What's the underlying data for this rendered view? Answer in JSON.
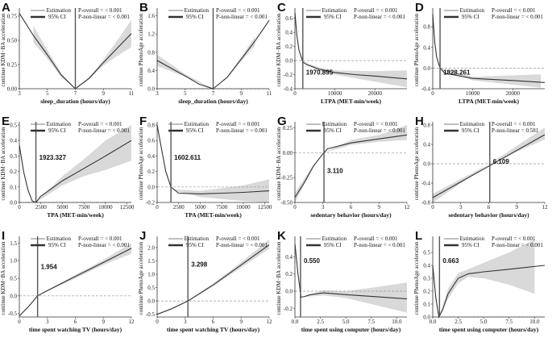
{
  "legend": {
    "estimation": "Estimation",
    "ci": "95% CI"
  },
  "chart_data": [
    {
      "id": "A",
      "type": "line",
      "ylabel": "continue KDM−BA acceleration",
      "xlabel": "sleep_duration (hours/day)",
      "xlim": [
        3,
        11
      ],
      "ylim": [
        0,
        0.8
      ],
      "xticks": [
        3,
        5,
        7,
        9,
        11
      ],
      "xtick_labels": [
        "3",
        "5",
        "7",
        "9",
        "11"
      ],
      "yticks": [
        0,
        0.25,
        0.5,
        0.75
      ],
      "ytick_labels": [
        "0.00",
        "0.25",
        "0.50",
        "0.75"
      ],
      "p_overall": "P-overall = < 0.001",
      "p_nonlinear": "P-non-linear = < 0.001",
      "ref_x": 7,
      "ref_label": "",
      "zero_line": false,
      "estimate": [
        [
          3,
          0.78
        ],
        [
          4,
          0.55
        ],
        [
          5,
          0.35
        ],
        [
          6,
          0.14
        ],
        [
          7,
          0
        ],
        [
          8,
          0.11
        ],
        [
          9,
          0.27
        ],
        [
          10,
          0.42
        ],
        [
          11,
          0.57
        ]
      ],
      "ci": [
        [
          4,
          0.48,
          0.65
        ],
        [
          5,
          0.31,
          0.4
        ],
        [
          6,
          0.12,
          0.16
        ],
        [
          7,
          0,
          0
        ],
        [
          8,
          0.1,
          0.12
        ],
        [
          9,
          0.24,
          0.3
        ],
        [
          10,
          0.34,
          0.5
        ],
        [
          11,
          0.43,
          0.71
        ]
      ]
    },
    {
      "id": "B",
      "type": "line",
      "ylabel": "continue PhenoAge acceleration",
      "xlabel": "sleep_duration (hours/day)",
      "xlim": [
        3,
        11
      ],
      "ylim": [
        0,
        1.7
      ],
      "xticks": [
        3,
        5,
        7,
        9,
        11
      ],
      "xtick_labels": [
        "3",
        "5",
        "7",
        "9",
        "11"
      ],
      "yticks": [
        0,
        0.4,
        0.8,
        1.2,
        1.6
      ],
      "ytick_labels": [
        "0.0",
        "0.4",
        "0.8",
        "1.2",
        "1.6"
      ],
      "p_overall": "P-overall = < 0.001",
      "p_nonlinear": "P-non-linear = < 0.001",
      "ref_x": 7,
      "ref_label": "",
      "zero_line": true,
      "estimate": [
        [
          3,
          0.62
        ],
        [
          4,
          0.45
        ],
        [
          5,
          0.28
        ],
        [
          6,
          0.1
        ],
        [
          7,
          0
        ],
        [
          8,
          0.25
        ],
        [
          9,
          0.65
        ],
        [
          10,
          1.05
        ],
        [
          11,
          1.5
        ]
      ],
      "ci": [
        [
          3,
          0.5,
          0.75
        ],
        [
          5,
          0.26,
          0.32
        ],
        [
          7,
          0,
          0
        ],
        [
          8,
          0.23,
          0.27
        ],
        [
          9,
          0.6,
          0.7
        ],
        [
          10,
          0.95,
          1.15
        ]
      ]
    },
    {
      "id": "C",
      "type": "line",
      "ylabel": "continue KDM−BA acceleration",
      "xlabel": "LTPA (MET-min/week)",
      "xlim": [
        0,
        28000
      ],
      "ylim": [
        -0.4,
        0.7
      ],
      "xticks": [
        0,
        10000,
        20000
      ],
      "xtick_labels": [
        "0",
        "10000",
        "20000"
      ],
      "yticks": [
        -0.4,
        -0.2,
        0,
        0.2,
        0.4,
        0.6
      ],
      "ytick_labels": [
        "-0.4",
        "-0.2",
        "0.0",
        "0.2",
        "0.4",
        "0.6"
      ],
      "p_overall": "P-overall = < 0.001",
      "p_nonlinear": "P-non-linear = < 0.001",
      "ref_x": 1970.895,
      "ref_label": "1970.895",
      "zero_line": true,
      "estimate": [
        [
          0,
          0.68
        ],
        [
          500,
          0.35
        ],
        [
          1000,
          0.15
        ],
        [
          1970,
          -0.02
        ],
        [
          3000,
          -0.06
        ],
        [
          6000,
          -0.12
        ],
        [
          10000,
          -0.17
        ],
        [
          15000,
          -0.2
        ],
        [
          20000,
          -0.22
        ],
        [
          28000,
          -0.26
        ]
      ],
      "ci": [
        [
          2000,
          -0.03,
          -0.01
        ],
        [
          6000,
          -0.15,
          -0.1
        ],
        [
          10000,
          -0.2,
          -0.14
        ],
        [
          20000,
          -0.3,
          -0.15
        ],
        [
          28000,
          -0.38,
          -0.14
        ]
      ]
    },
    {
      "id": "D",
      "type": "line",
      "ylabel": "continue PhenoAge acceleration",
      "xlabel": "LTPA (MET-min/week)",
      "xlim": [
        0,
        28000
      ],
      "ylim": [
        -0.4,
        1.1
      ],
      "xticks": [
        0,
        10000,
        20000
      ],
      "xtick_labels": [
        "0",
        "10000",
        "20000"
      ],
      "yticks": [
        -0.4,
        0,
        0.4,
        0.8
      ],
      "ytick_labels": [
        "-0.4",
        "0.0",
        "0.4",
        "0.8"
      ],
      "p_overall": "P-overall = < 0.001",
      "p_nonlinear": "P-non-linear = < 0.001",
      "ref_x": 1828.261,
      "ref_label": "1828.261",
      "zero_line": true,
      "estimate": [
        [
          0,
          1.05
        ],
        [
          500,
          0.5
        ],
        [
          1000,
          0.2
        ],
        [
          1828,
          0
        ],
        [
          3000,
          -0.1
        ],
        [
          10000,
          -0.2
        ],
        [
          20000,
          -0.24
        ],
        [
          28000,
          -0.28
        ]
      ],
      "ci": [
        [
          2000,
          -0.02,
          0
        ],
        [
          10000,
          -0.24,
          -0.17
        ],
        [
          20000,
          -0.32,
          -0.14
        ],
        [
          27000,
          -0.38,
          -0.12
        ]
      ]
    },
    {
      "id": "E",
      "type": "line",
      "ylabel": "continue KDM−BA acceleration",
      "xlabel": "TPA (MET-min/week)",
      "xlim": [
        0,
        13000
      ],
      "ylim": [
        0,
        0.5
      ],
      "xticks": [
        0,
        2500,
        5000,
        7500,
        10000,
        12500
      ],
      "xtick_labels": [
        "0",
        "2500",
        "5000",
        "7500",
        "10000",
        "12500"
      ],
      "yticks": [
        0,
        0.1,
        0.2,
        0.3,
        0.4,
        0.5
      ],
      "ytick_labels": [
        "0.0",
        "0.1",
        "0.2",
        "0.3",
        "0.4",
        "0.5"
      ],
      "p_overall": "P-overall = < 0.001",
      "p_nonlinear": "P-non-linear = < 0.001",
      "ref_x": 1923.327,
      "ref_label": "1923.327",
      "zero_line": true,
      "estimate": [
        [
          0,
          0.37
        ],
        [
          500,
          0.2
        ],
        [
          1000,
          0.08
        ],
        [
          1500,
          0.01
        ],
        [
          1923,
          0
        ],
        [
          2500,
          0.04
        ],
        [
          5000,
          0.14
        ],
        [
          7500,
          0.22
        ],
        [
          10000,
          0.3
        ],
        [
          13000,
          0.4
        ]
      ],
      "ci": [
        [
          1923,
          0,
          0
        ],
        [
          5000,
          0.11,
          0.17
        ],
        [
          7500,
          0.17,
          0.28
        ],
        [
          10000,
          0.21,
          0.4
        ],
        [
          13000,
          0.27,
          0.5
        ]
      ]
    },
    {
      "id": "F",
      "type": "line",
      "ylabel": "continue PhenoAge acceleration",
      "xlabel": "TPA (MET-min/week)",
      "xlim": [
        0,
        13000
      ],
      "ylim": [
        -0.2,
        0.8
      ],
      "xticks": [
        0,
        2500,
        5000,
        7500,
        10000,
        12500
      ],
      "xtick_labels": [
        "0",
        "2500",
        "5000",
        "7500",
        "10000",
        "12500"
      ],
      "yticks": [
        -0.2,
        0,
        0.2,
        0.4,
        0.6,
        0.8
      ],
      "ytick_labels": [
        "-0.2",
        "0.0",
        "0.2",
        "0.4",
        "0.6",
        "0.8"
      ],
      "p_overall": "P-overall = < 0.001",
      "p_nonlinear": "P-non-linear = < 0.001",
      "ref_x": 1602.611,
      "ref_label": "1602.611",
      "zero_line": true,
      "estimate": [
        [
          0,
          0.8
        ],
        [
          500,
          0.5
        ],
        [
          1000,
          0.2
        ],
        [
          1602,
          0
        ],
        [
          2500,
          -0.08
        ],
        [
          5000,
          -0.09
        ],
        [
          7500,
          -0.08
        ],
        [
          10000,
          -0.07
        ],
        [
          13000,
          -0.05
        ]
      ],
      "ci": [
        [
          1800,
          -0.04,
          -0.03
        ],
        [
          5000,
          -0.13,
          -0.05
        ],
        [
          10000,
          -0.18,
          0.02
        ],
        [
          13000,
          -0.2,
          0.1
        ]
      ]
    },
    {
      "id": "G",
      "type": "line",
      "ylabel": "continue KDM−BA acceleration",
      "xlabel": "sedentary behavior (hours/day)",
      "xlim": [
        0,
        12
      ],
      "ylim": [
        -0.5,
        0.28
      ],
      "xticks": [
        0,
        3,
        6,
        9,
        12
      ],
      "xtick_labels": [
        "0",
        "3",
        "6",
        "9",
        "12"
      ],
      "yticks": [
        -0.5,
        -0.25,
        0,
        0.25
      ],
      "ytick_labels": [
        "-0.50",
        "-0.25",
        "0.00",
        "0.25"
      ],
      "p_overall": "P-overall = < 0.001",
      "p_nonlinear": "P-non-linear = < 0.001",
      "ref_x": 3.11,
      "ref_label": "3.110",
      "zero_line": true,
      "estimate": [
        [
          0,
          -0.45
        ],
        [
          1,
          -0.3
        ],
        [
          2,
          -0.13
        ],
        [
          3,
          -0.01
        ],
        [
          3.5,
          0.04
        ],
        [
          6,
          0.1
        ],
        [
          9,
          0.14
        ],
        [
          12,
          0.18
        ]
      ],
      "ci": [
        [
          0,
          -0.5,
          -0.4
        ],
        [
          2,
          -0.14,
          -0.12
        ],
        [
          3.1,
          0,
          0
        ],
        [
          6,
          0.08,
          0.13
        ],
        [
          9,
          0.11,
          0.18
        ],
        [
          12,
          0.13,
          0.28
        ]
      ]
    },
    {
      "id": "H",
      "type": "line",
      "ylabel": "continue PhenoAge acceleration",
      "xlabel": "sedentary behavior (hours/day)",
      "xlim": [
        0,
        12
      ],
      "ylim": [
        -0.8,
        0.8
      ],
      "xticks": [
        0,
        3,
        6,
        9,
        12
      ],
      "xtick_labels": [
        "0",
        "3",
        "6",
        "9",
        "12"
      ],
      "yticks": [
        -0.8,
        -0.4,
        0,
        0.4,
        0.8
      ],
      "ytick_labels": [
        "-0.8",
        "-0.4",
        "0.0",
        "0.4",
        "0.8"
      ],
      "p_overall": "P-overall = < 0.001",
      "p_nonlinear": "P-non-linear = 0.581",
      "ref_x": 6.109,
      "ref_label": "6.109",
      "zero_line": true,
      "estimate": [
        [
          0,
          -0.7
        ],
        [
          12,
          0.6
        ]
      ],
      "ci": [
        [
          0,
          -0.8,
          -0.62
        ],
        [
          6.1,
          0,
          0
        ],
        [
          12,
          0.5,
          0.75
        ]
      ]
    },
    {
      "id": "I",
      "type": "line",
      "ylabel": "continue KDM−BA acceleration",
      "xlabel": "time spent watching TV (hours/day)",
      "xlim": [
        0,
        12
      ],
      "ylim": [
        -0.6,
        1.6
      ],
      "xticks": [
        0,
        3,
        6,
        9,
        12
      ],
      "xtick_labels": [
        "0",
        "3",
        "6",
        "9",
        "12"
      ],
      "yticks": [
        -0.5,
        0,
        0.5,
        1,
        1.5
      ],
      "ytick_labels": [
        "-0.5",
        "0.0",
        "0.5",
        "1.0",
        "1.5"
      ],
      "p_overall": "P-overall = < 0.001",
      "p_nonlinear": "P-non-linear = < 0.001",
      "ref_x": 1.954,
      "ref_label": "1.954",
      "zero_line": true,
      "estimate": [
        [
          0,
          -0.57
        ],
        [
          1,
          -0.3
        ],
        [
          1.95,
          0
        ],
        [
          3,
          0.15
        ],
        [
          6,
          0.55
        ],
        [
          9,
          0.95
        ],
        [
          12,
          1.35
        ]
      ],
      "ci": [
        [
          1.95,
          0,
          0
        ],
        [
          6,
          0.5,
          0.6
        ],
        [
          9,
          0.88,
          1.02
        ],
        [
          12,
          1.2,
          1.5
        ]
      ]
    },
    {
      "id": "J",
      "type": "line",
      "ylabel": "continue PhenoAge acceleration",
      "xlabel": "time spent watching TV (hours/day)",
      "xlim": [
        0,
        12
      ],
      "ylim": [
        -0.6,
        2.3
      ],
      "xticks": [
        0,
        3,
        6,
        9,
        12
      ],
      "xtick_labels": [
        "0",
        "3",
        "6",
        "9",
        "12"
      ],
      "yticks": [
        -0.5,
        0,
        0.5,
        1,
        1.5,
        2
      ],
      "ytick_labels": [
        "-0.5",
        "0.0",
        "0.5",
        "1.0",
        "1.5",
        "2.0"
      ],
      "p_overall": "P-overall = < 0.001",
      "p_nonlinear": "P-non-linear = < 0.001",
      "ref_x": 3.298,
      "ref_label": "3.298",
      "zero_line": true,
      "estimate": [
        [
          0,
          -0.5
        ],
        [
          1.5,
          -0.3
        ],
        [
          3.3,
          0
        ],
        [
          6,
          0.6
        ],
        [
          9,
          1.35
        ],
        [
          12,
          2.1
        ]
      ],
      "ci": [
        [
          0,
          -0.52,
          -0.48
        ],
        [
          3.3,
          0,
          0
        ],
        [
          6,
          0.55,
          0.65
        ],
        [
          9,
          1.25,
          1.45
        ],
        [
          12,
          1.95,
          2.3
        ]
      ]
    },
    {
      "id": "K",
      "type": "line",
      "ylabel": "continue KDM−BA acceleration",
      "xlabel": "time spent using computer (hours/day)",
      "xlim": [
        0,
        11
      ],
      "ylim": [
        -0.3,
        0.6
      ],
      "xticks": [
        0,
        2.5,
        5,
        7.5,
        10
      ],
      "xtick_labels": [
        "0.0",
        "2.5",
        "5.0",
        "7.5",
        "10.0"
      ],
      "yticks": [
        -0.2,
        0,
        0.2,
        0.4
      ],
      "ytick_labels": [
        "-0.2",
        "0.0",
        "0.2",
        "0.4"
      ],
      "p_overall": "P-overall = < 0.001",
      "p_nonlinear": "P-non-linear = < 0.001",
      "ref_x": 0.55,
      "ref_label": "0.550",
      "zero_line": true,
      "estimate": [
        [
          0,
          0.55
        ],
        [
          0.3,
          0.2
        ],
        [
          0.6,
          -0.07
        ],
        [
          1,
          -0.06
        ],
        [
          1.5,
          -0.04
        ],
        [
          2.8,
          -0.02
        ],
        [
          5,
          -0.04
        ],
        [
          7.5,
          -0.06
        ],
        [
          11,
          -0.09
        ]
      ],
      "ci": [
        [
          0.6,
          -0.07,
          -0.07
        ],
        [
          2.8,
          -0.05,
          0.01
        ],
        [
          5,
          -0.08,
          0
        ],
        [
          7.5,
          -0.15,
          0.04
        ],
        [
          11,
          -0.25,
          0.1
        ]
      ]
    },
    {
      "id": "L",
      "type": "line",
      "ylabel": "continue PhenoAge acceleration",
      "xlabel": "time spent using computer (hours/day)",
      "xlim": [
        0,
        11
      ],
      "ylim": [
        0,
        0.6
      ],
      "xticks": [
        0,
        2.5,
        5,
        7.5,
        10
      ],
      "xtick_labels": [
        "0.0",
        "2.5",
        "5.0",
        "7.5",
        "10.0"
      ],
      "yticks": [
        0,
        0.1,
        0.2,
        0.3,
        0.4,
        0.5
      ],
      "ytick_labels": [
        "0.0",
        "0.1",
        "0.2",
        "0.3",
        "0.4",
        "0.5"
      ],
      "p_overall": "P-overall = < 0.001",
      "p_nonlinear": "P-non-linear = < 0.001",
      "ref_x": 0.663,
      "ref_label": "0.663",
      "zero_line": true,
      "estimate": [
        [
          0,
          0.4
        ],
        [
          0.3,
          0.15
        ],
        [
          0.6,
          0
        ],
        [
          1,
          0.06
        ],
        [
          1.5,
          0.18
        ],
        [
          2.5,
          0.3
        ],
        [
          3.5,
          0.335
        ],
        [
          5,
          0.35
        ],
        [
          7.5,
          0.37
        ],
        [
          11,
          0.4
        ]
      ],
      "ci": [
        [
          0.6,
          0,
          0
        ],
        [
          1.5,
          0.14,
          0.22
        ],
        [
          2.5,
          0.26,
          0.34
        ],
        [
          3.5,
          0.31,
          0.37
        ],
        [
          5,
          0.3,
          0.42
        ],
        [
          7.5,
          0.25,
          0.5
        ],
        [
          10,
          0.18,
          0.6
        ]
      ]
    }
  ]
}
